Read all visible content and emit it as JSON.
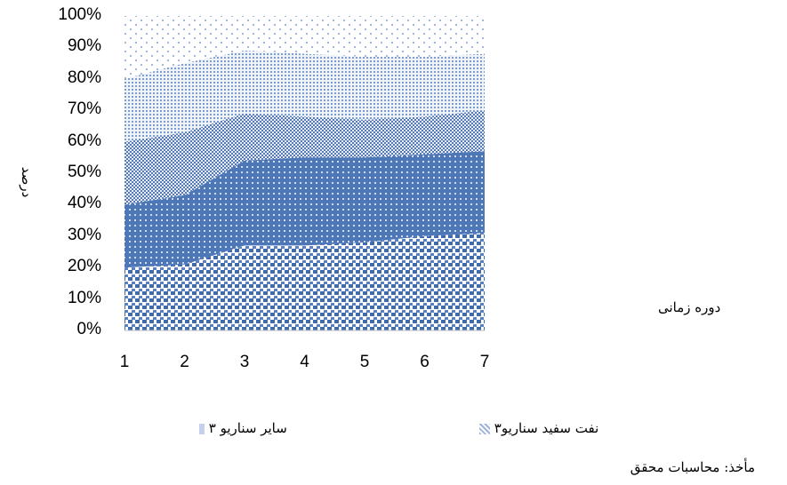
{
  "chart_data": {
    "type": "area",
    "stacked": true,
    "x": [
      1,
      2,
      3,
      4,
      5,
      6,
      7
    ],
    "xticks": [
      "1",
      "2",
      "3",
      "4",
      "5",
      "6",
      "7"
    ],
    "yticks": [
      "0%",
      "10%",
      "20%",
      "30%",
      "40%",
      "50%",
      "60%",
      "70%",
      "80%",
      "90%",
      "100%"
    ],
    "ylim": [
      0,
      100
    ],
    "ylabel": "درصد",
    "xlabel": "دوره زمانی",
    "grid": false,
    "series": [
      {
        "values": [
          20,
          21,
          27,
          27,
          28,
          30,
          31
        ],
        "color": "#4f76b4",
        "pattern": "small-squares"
      },
      {
        "values": [
          20,
          22,
          27,
          28,
          27,
          26,
          26
        ],
        "color": "#5b82c0",
        "pattern": "dotted"
      },
      {
        "values": [
          20,
          20,
          15,
          13,
          12,
          12,
          13
        ],
        "color": "#7f9fcf",
        "pattern": "checker"
      },
      {
        "values": [
          20,
          22,
          20,
          20,
          20,
          19,
          18
        ],
        "color": "#9bb4db",
        "pattern": "fine-dots"
      },
      {
        "values": [
          20,
          15,
          11,
          12,
          13,
          13,
          12
        ],
        "color": "#c3d2ea",
        "pattern": "sparse-dots"
      }
    ],
    "legend": [
      {
        "label": "سایر سناریو ۳",
        "color": "#c3d2ea"
      },
      {
        "label": "نفت سفید سناریو۳",
        "color": "#9bb4db"
      }
    ]
  },
  "source_note": "مأخذ: محاسبات محقق"
}
